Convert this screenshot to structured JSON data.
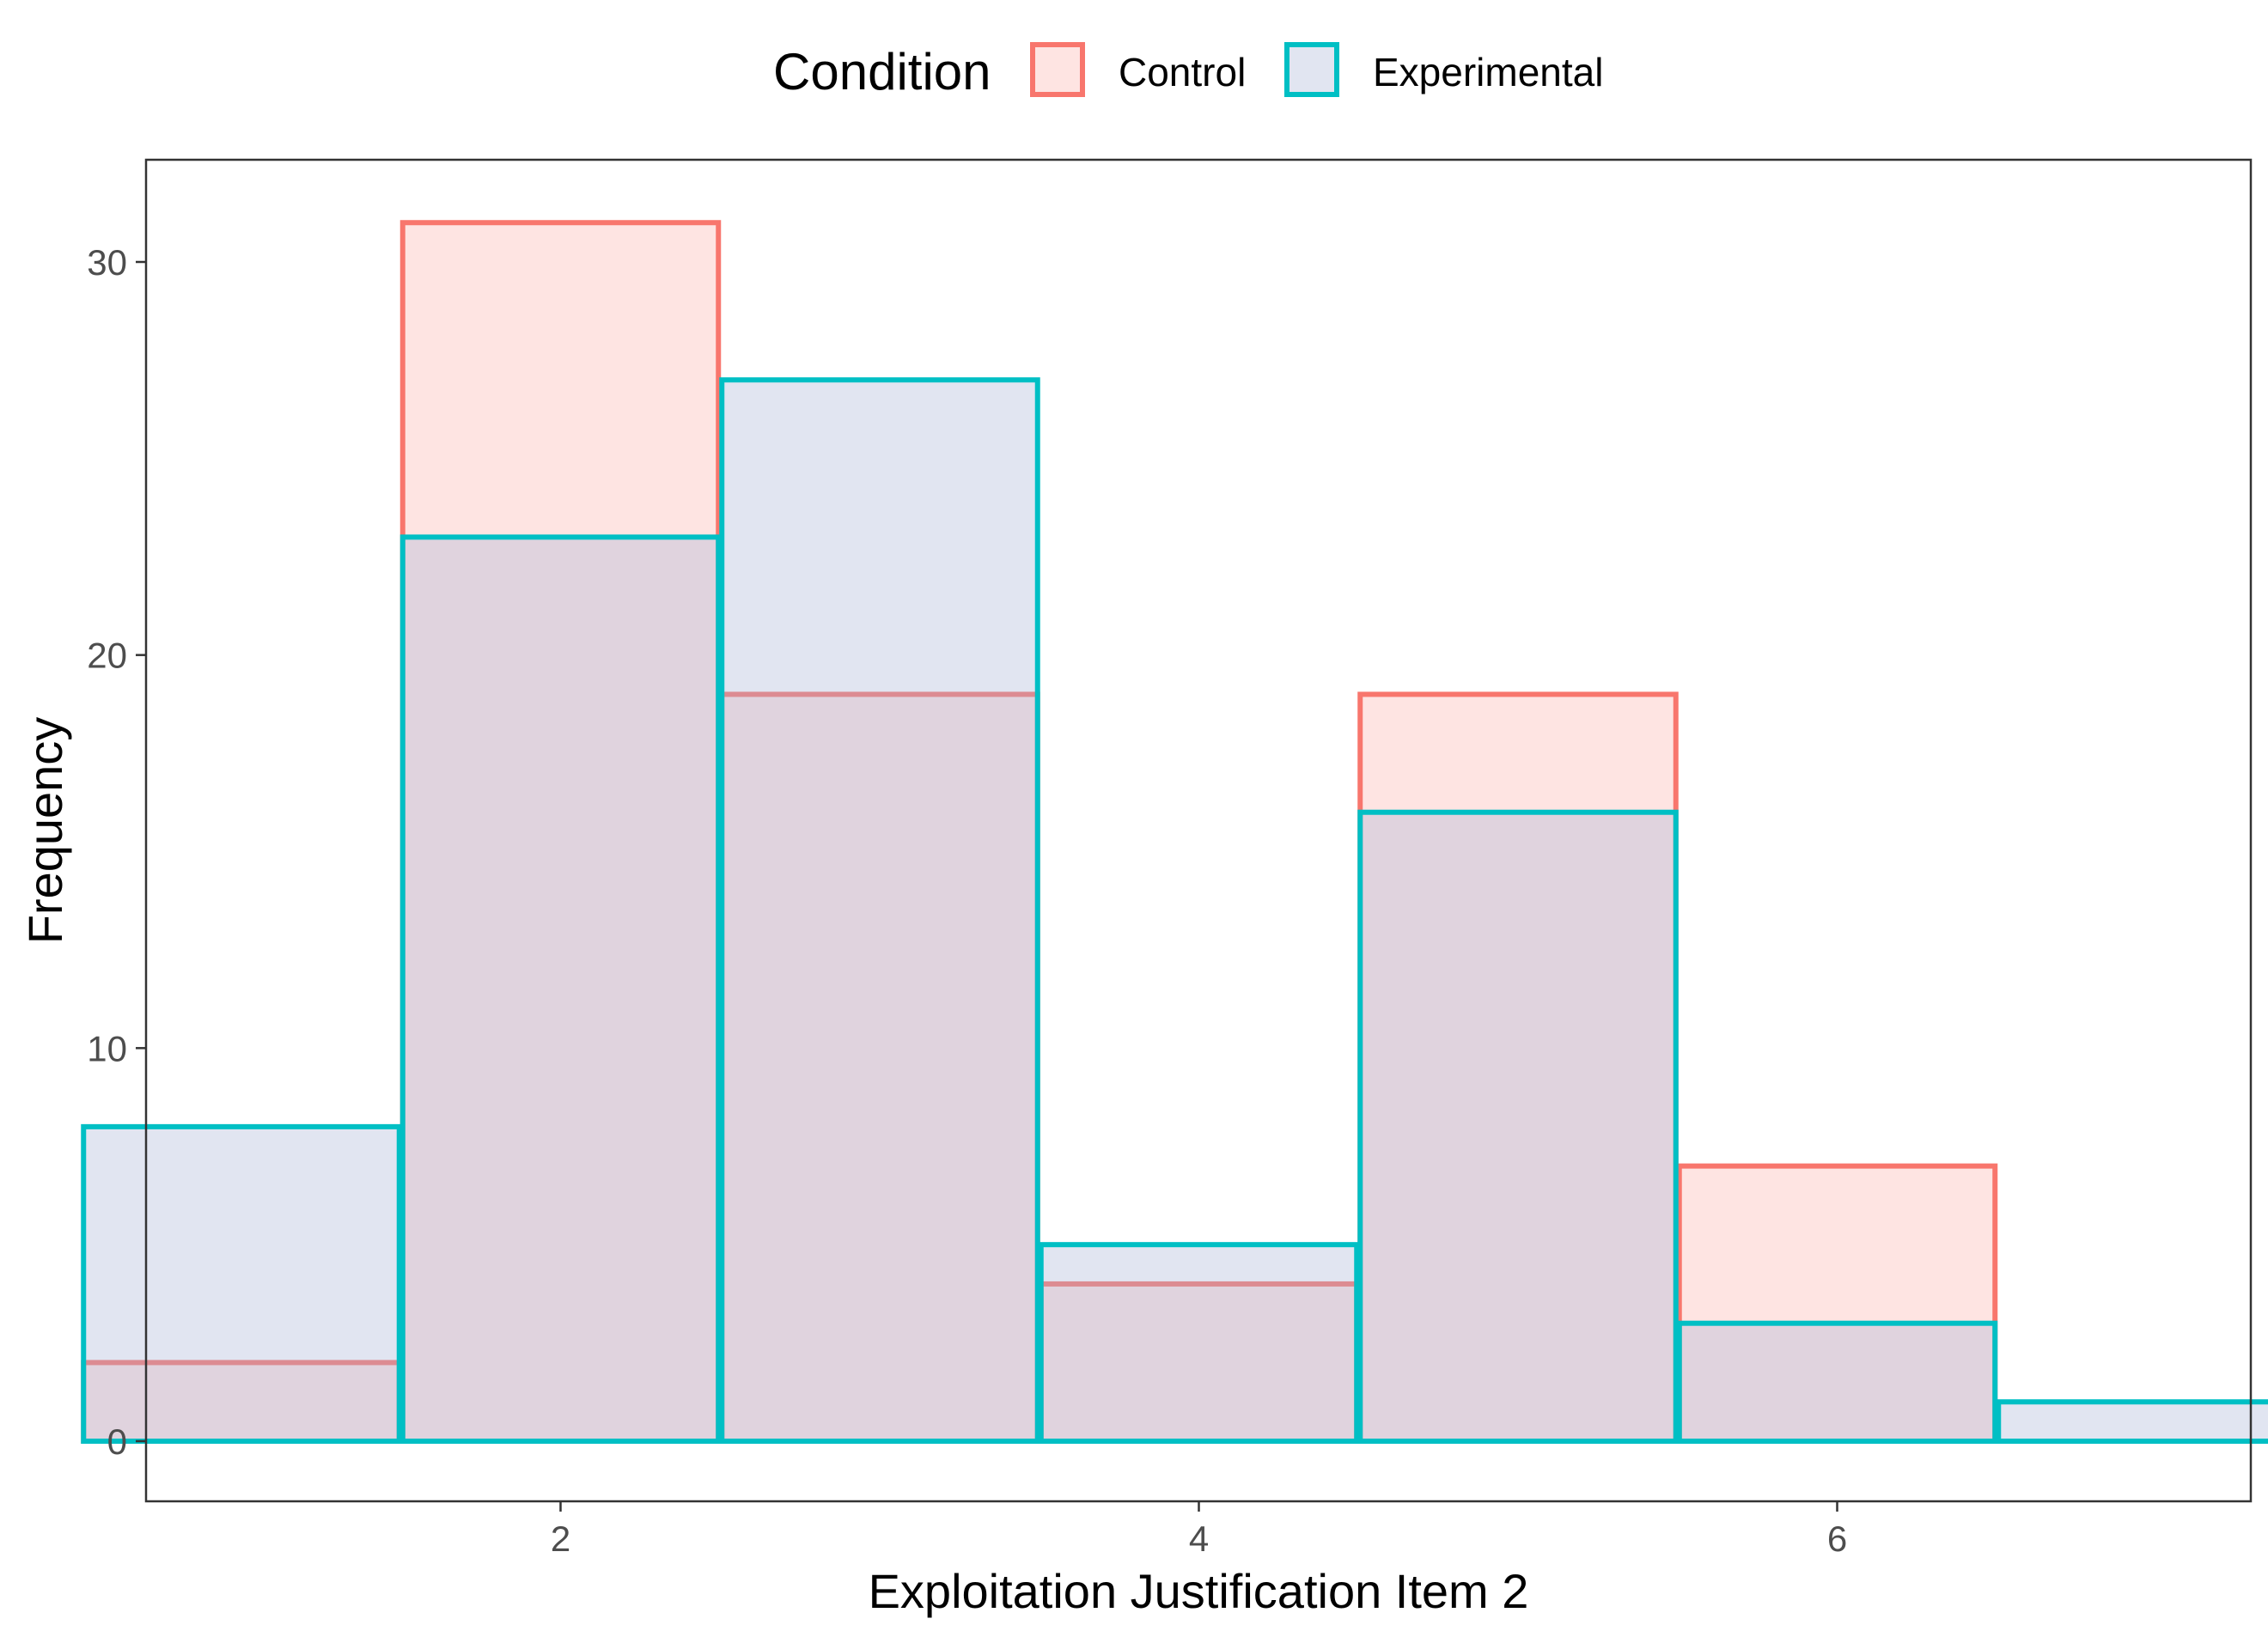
{
  "chart_data": {
    "type": "bar",
    "subtype": "overlapping-histogram",
    "xlabel": "Exploitation Justification Item 2",
    "ylabel": "Frequency",
    "x": [
      1,
      2,
      3,
      4,
      5,
      6,
      7
    ],
    "bin_width": 1,
    "xlim": [
      0.5,
      7.5
    ],
    "ylim": [
      0,
      31
    ],
    "x_ticks": [
      2,
      4,
      6
    ],
    "y_ticks": [
      0,
      10,
      20,
      30
    ],
    "grid": false,
    "legend": {
      "title": "Condition",
      "position": "top"
    },
    "series": [
      {
        "name": "Control",
        "values": [
          2,
          31,
          19,
          4,
          19,
          7,
          0
        ],
        "color": "#F8766D",
        "fill": "#F8766D",
        "fill_opacity": 0.2
      },
      {
        "name": "Experimental",
        "values": [
          8,
          23,
          27,
          5,
          16,
          3,
          1
        ],
        "color": "#00BFC4",
        "fill": "#A9B4D6",
        "fill_opacity": 0.35
      }
    ]
  }
}
